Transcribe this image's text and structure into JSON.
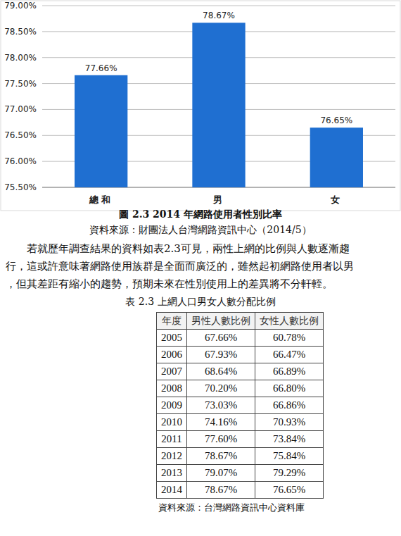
{
  "chart_data": {
    "type": "bar",
    "categories": [
      "總和",
      "男",
      "女"
    ],
    "values": [
      77.66,
      78.67,
      76.65
    ],
    "value_labels": [
      "77.66%",
      "78.67%",
      "76.65%"
    ],
    "color": "#1f6fd1",
    "ylim": [
      75.5,
      79
    ],
    "yticks": [
      {
        "value": 75.5,
        "label": "75.50%"
      },
      {
        "value": 76,
        "label": "76.00%"
      },
      {
        "value": 76.5,
        "label": "76.50%"
      },
      {
        "value": 77,
        "label": "77.00%"
      },
      {
        "value": 77.5,
        "label": "77.50%"
      },
      {
        "value": 78,
        "label": "78.00%"
      },
      {
        "value": 78.5,
        "label": "78.50%"
      },
      {
        "value": 79,
        "label": "79.00%"
      }
    ],
    "grid": true,
    "data_labels": true
  },
  "figure": {
    "caption": "圖 2.3 2014 年網路使用者性別比率",
    "source": "資料來源：財團法人台灣網路資訊中心（2014/5）"
  },
  "paragraph": {
    "lines": [
      "若就歷年調查結果的資料如表2.3可見，兩性上網的比例與人數逐漸趨",
      "行，這或許意味著網路使用族群是全面而廣泛的，雖然起初網路使用者以男",
      "，但其差距有縮小的趨勢，預期未來在性別使用上的差異將不分軒輊。"
    ]
  },
  "table": {
    "title": "表 2.3 上網人口男女人數分配比例",
    "header": [
      "年度",
      "男性人數比例",
      "女性人數比例"
    ],
    "rows": [
      [
        "2005",
        "67.66%",
        "60.78%"
      ],
      [
        "2006",
        "67.93%",
        "66.47%"
      ],
      [
        "2007",
        "68.64%",
        "66.89%"
      ],
      [
        "2008",
        "70.20%",
        "66.80%"
      ],
      [
        "2009",
        "73.03%",
        "66.86%"
      ],
      [
        "2010",
        "74.16%",
        "70.93%"
      ],
      [
        "2011",
        "77.60%",
        "73.84%"
      ],
      [
        "2012",
        "78.67%",
        "75.84%"
      ],
      [
        "2013",
        "79.07%",
        "79.29%"
      ],
      [
        "2014",
        "78.67%",
        "76.65%"
      ]
    ],
    "source": "資料來源：台灣網路資訊中心資料庫"
  }
}
